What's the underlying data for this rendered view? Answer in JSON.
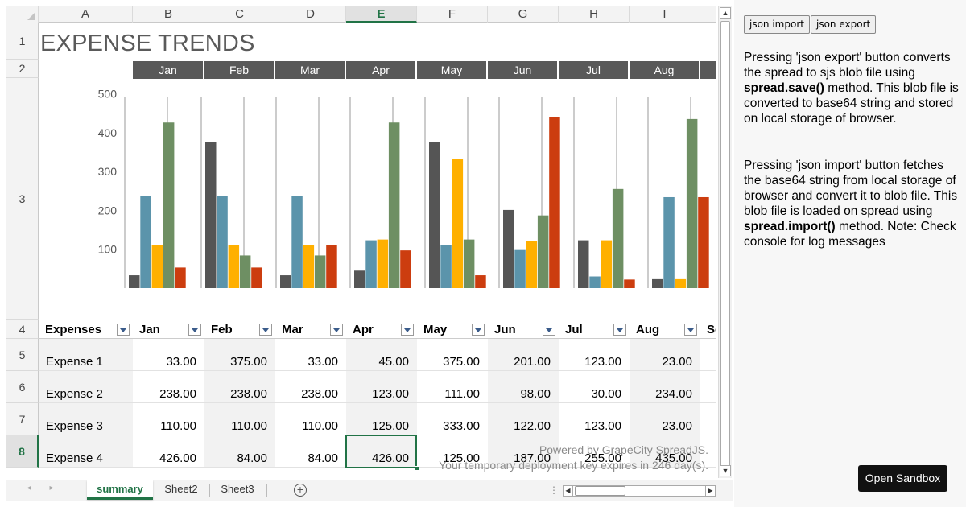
{
  "sheet": {
    "columns": [
      "A",
      "B",
      "C",
      "D",
      "E",
      "F",
      "G",
      "H",
      "I"
    ],
    "active_column": "E",
    "rows": [
      "1",
      "2",
      "3",
      "4",
      "5",
      "6",
      "7",
      "8"
    ],
    "active_row": "8",
    "title": "EXPENSE TRENDS",
    "months": [
      "Jan",
      "Feb",
      "Mar",
      "Apr",
      "May",
      "Jun",
      "Jul",
      "Aug"
    ],
    "table_header": {
      "first": "Expenses",
      "months": [
        "Jan",
        "Feb",
        "Mar",
        "Apr",
        "May",
        "Jun",
        "Jul",
        "Aug"
      ],
      "overflow": "Se"
    },
    "table_rows": [
      {
        "label": "Expense 1",
        "values": [
          "33.00",
          "375.00",
          "33.00",
          "45.00",
          "375.00",
          "201.00",
          "123.00",
          "23.00"
        ]
      },
      {
        "label": "Expense 2",
        "values": [
          "238.00",
          "238.00",
          "238.00",
          "123.00",
          "111.00",
          "98.00",
          "30.00",
          "234.00"
        ]
      },
      {
        "label": "Expense 3",
        "values": [
          "110.00",
          "110.00",
          "110.00",
          "125.00",
          "333.00",
          "122.00",
          "123.00",
          "23.00"
        ]
      },
      {
        "label": "Expense 4",
        "values": [
          "426.00",
          "84.00",
          "84.00",
          "426.00",
          "125.00",
          "187.00",
          "255.00",
          "435.00"
        ]
      }
    ],
    "watermark_line1": "Powered by GrapeCity SpreadJS.",
    "watermark_line2": "Your temporary deployment key expires in 246 day(s).",
    "tabs": [
      "summary",
      "Sheet2",
      "Sheet3"
    ],
    "active_tab": "summary"
  },
  "chart_data": {
    "type": "bar",
    "categories": [
      "Jan",
      "Feb",
      "Mar",
      "Apr",
      "May",
      "Jun",
      "Jul",
      "Aug"
    ],
    "ylim": [
      0,
      500
    ],
    "yticks": [
      "100",
      "200",
      "300",
      "400",
      "500"
    ],
    "series": [
      {
        "values": [
          33,
          375,
          33,
          45,
          375,
          201,
          123,
          23
        ],
        "color": "#555555"
      },
      {
        "values": [
          238,
          238,
          238,
          123,
          111,
          98,
          30,
          234
        ],
        "color": "#5b94ab"
      },
      {
        "values": [
          110,
          110,
          110,
          125,
          333,
          122,
          123,
          23
        ],
        "color": "#ffb000"
      },
      {
        "values": [
          426,
          84,
          84,
          426,
          125,
          187,
          255,
          435
        ],
        "color": "#6e8f63"
      },
      {
        "values": [
          53,
          53,
          110,
          97,
          33,
          440,
          22,
          234
        ],
        "color": "#cc3d0f"
      }
    ]
  },
  "panel": {
    "import_button": "json import",
    "export_button": "json export",
    "para1_a": "Pressing 'json export' button converts the spread to sjs blob file using ",
    "para1_code": "spread.save()",
    "para1_b": " method. This blob file is converted to base64 string and stored on local storage of browser.",
    "para2_a": "Pressing 'json import' button fetches the base64 string from local storage of browser and convert it to blob file. This blob file is loaded on spread using ",
    "para2_code": "spread.import()",
    "para2_b": " method. Note: Check console for log messages",
    "sandbox_button": "Open Sandbox"
  }
}
